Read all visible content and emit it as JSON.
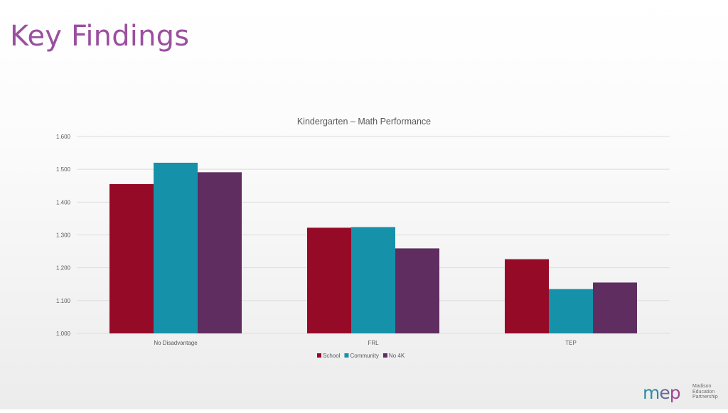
{
  "slide": {
    "title": "Key Findings"
  },
  "logo": {
    "mark": [
      "m",
      "e",
      "p"
    ],
    "lines": [
      "Madison",
      "Education",
      "Partnership"
    ]
  },
  "colors": {
    "School": "#950a27",
    "Community": "#1592aa",
    "No 4K": "#5f2d60"
  },
  "chart_data": {
    "type": "bar",
    "title": "Kindergarten – Math Performance",
    "categories": [
      "No Disadvantage",
      "FRL",
      "TEP"
    ],
    "series": [
      {
        "name": "School",
        "values": [
          1.455,
          1.322,
          1.226
        ]
      },
      {
        "name": "Community",
        "values": [
          1.52,
          1.324,
          1.135
        ]
      },
      {
        "name": "No 4K",
        "values": [
          1.491,
          1.259,
          1.155
        ]
      }
    ],
    "ylim": [
      1.0,
      1.6
    ],
    "yticks": [
      "1.000",
      "1.100",
      "1.200",
      "1.300",
      "1.400",
      "1.500",
      "1.600"
    ],
    "grid": true,
    "legend": "bottom"
  }
}
